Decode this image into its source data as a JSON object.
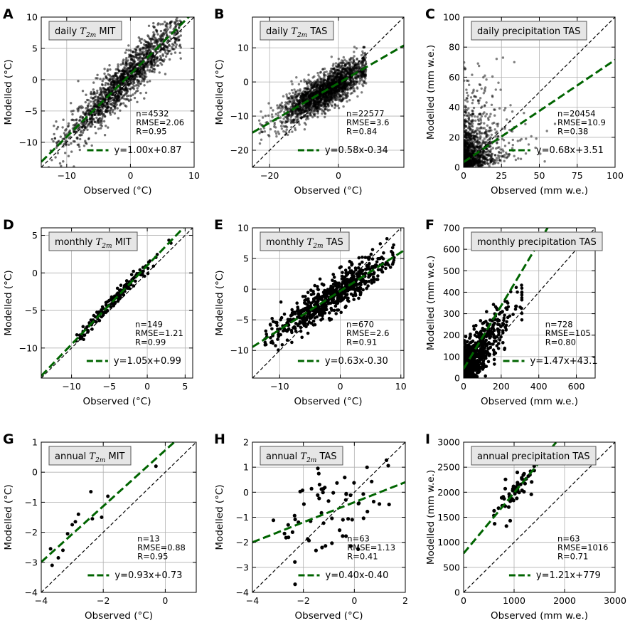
{
  "colors": {
    "fit": "#006400",
    "points": "#000000",
    "identity": "#000000",
    "grid": "#b0b0b0",
    "title_box": "#e6e6e6"
  },
  "chart_data": [
    {
      "id": "A",
      "type": "scatter",
      "letter": "A",
      "title": {
        "prefix": "daily",
        "var": "T",
        "sub": "2m",
        "suffix": "MIT"
      },
      "xlabel": "Observed (°C)",
      "ylabel": "Modelled (°C)",
      "xlim": [
        -14,
        10
      ],
      "ylim": [
        -14,
        10
      ],
      "xticks": [
        -10,
        0,
        10
      ],
      "yticks": [
        -10,
        -5,
        0,
        5,
        10
      ],
      "stats": {
        "n": "n=4532",
        "rmse": "RMSE=2.06",
        "r": "R=0.95"
      },
      "fit_label": "y=1.00x+0.87",
      "fit": {
        "slope": 1.0,
        "intercept": 0.87
      },
      "cloud": {
        "count": 1600,
        "xmin": -13,
        "xmax": 8,
        "center": -1,
        "spread": 4.5,
        "noise": 1.9,
        "opacity": 0.55,
        "r": 1.7,
        "seed": 11
      }
    },
    {
      "id": "B",
      "type": "scatter",
      "letter": "B",
      "title": {
        "prefix": "daily",
        "var": "T",
        "sub": "2m",
        "suffix": "TAS"
      },
      "xlabel": "Observed (°C)",
      "ylabel": "Modelled (°C)",
      "xlim": [
        -25,
        19
      ],
      "ylim": [
        -25,
        19
      ],
      "xticks": [
        -20,
        0
      ],
      "yticks": [
        -20,
        -10,
        0,
        10
      ],
      "stats": {
        "n": "n=22577",
        "rmse": "RMSE=3.6",
        "r": "R=0.84"
      },
      "fit_label": "y=0.58x-0.34",
      "fit": {
        "slope": 0.58,
        "intercept": -0.34
      },
      "cloud": {
        "count": 2200,
        "xmin": -23,
        "xmax": 8,
        "center": -4,
        "spread": 6.5,
        "noise": 2.6,
        "opacity": 0.5,
        "r": 1.7,
        "seed": 23
      }
    },
    {
      "id": "C",
      "type": "scatter",
      "letter": "C",
      "title": {
        "prefix": "daily precipitation TAS",
        "var": "",
        "sub": "",
        "suffix": ""
      },
      "xlabel": "Observed (mm w.e.)",
      "ylabel": "Modelled (mm w.e.)",
      "xlim": [
        0,
        100
      ],
      "ylim": [
        0,
        100
      ],
      "xticks": [
        0,
        25,
        50,
        75,
        100
      ],
      "yticks": [
        0,
        20,
        40,
        60,
        80,
        100
      ],
      "stats": {
        "n": "n=20454",
        "rmse": "RMSE=10.9",
        "r": "R=0.38"
      },
      "fit_label": "y=0.68x+3.51",
      "fit": {
        "slope": 0.68,
        "intercept": 3.51
      },
      "cloud": {
        "count": 1100,
        "xmin": 0,
        "xmax": 95,
        "mode": "precip",
        "scale": 9,
        "yscale": 14,
        "opacity": 0.5,
        "r": 1.7,
        "seed": 37
      }
    },
    {
      "id": "D",
      "type": "scatter",
      "letter": "D",
      "title": {
        "prefix": "monthly",
        "var": "T",
        "sub": "2m",
        "suffix": "MIT"
      },
      "xlabel": "Observed (°C)",
      "ylabel": "Modelled (°C)",
      "xlim": [
        -14,
        6
      ],
      "ylim": [
        -14,
        6
      ],
      "xticks": [
        -10,
        -5,
        0,
        5
      ],
      "yticks": [
        -10,
        -5,
        0,
        5
      ],
      "stats": {
        "n": "n=149",
        "rmse": "RMSE=1.21",
        "r": "R=0.99"
      },
      "fit_label": "y=1.05x+0.99",
      "fit": {
        "slope": 1.05,
        "intercept": 0.99
      },
      "cloud": {
        "count": 149,
        "xmin": -9.5,
        "xmax": 4,
        "center": -4,
        "spread": 3.2,
        "noise": 0.45,
        "opacity": 1,
        "r": 2.3,
        "seed": 41
      }
    },
    {
      "id": "E",
      "type": "scatter",
      "letter": "E",
      "title": {
        "prefix": "monthly",
        "var": "T",
        "sub": "2m",
        "suffix": "TAS"
      },
      "xlabel": "Observed (°C)",
      "ylabel": "Modelled (°C)",
      "xlim": [
        -14.5,
        10.5
      ],
      "ylim": [
        -14.5,
        10
      ],
      "xticks": [
        -10,
        0,
        10
      ],
      "yticks": [
        -10,
        -5,
        0,
        5,
        10
      ],
      "stats": {
        "n": "n=670",
        "rmse": "RMSE=2.6",
        "r": "R=0.91"
      },
      "fit_label": "y=0.63x-0.30",
      "fit": {
        "slope": 0.63,
        "intercept": -0.3
      },
      "cloud": {
        "count": 670,
        "xmin": -12.5,
        "xmax": 9,
        "center": -1.5,
        "spread": 5,
        "noise": 1.4,
        "opacity": 1,
        "r": 2.3,
        "seed": 53
      }
    },
    {
      "id": "F",
      "type": "scatter",
      "letter": "F",
      "title": {
        "prefix": "monthly precipitation TAS",
        "var": "",
        "sub": "",
        "suffix": ""
      },
      "xlabel": "Observed (mm w.e.)",
      "ylabel": "Modelled (mm w.e.)",
      "xlim": [
        0,
        700
      ],
      "ylim": [
        0,
        700
      ],
      "xticks": [
        0,
        200,
        400,
        600
      ],
      "yticks": [
        0,
        100,
        200,
        300,
        400,
        500,
        600,
        700
      ],
      "stats": {
        "n": "n=728",
        "rmse": "RMSE=105",
        "r": "R=0.80"
      },
      "fit_label": "y=1.47x+43.1",
      "fit": {
        "slope": 1.47,
        "intercept": 43.1
      },
      "cloud": {
        "count": 728,
        "xmin": 0,
        "xmax": 310,
        "mode": "precip",
        "scale": 70,
        "yscale": 0,
        "noise": 55,
        "opacity": 1,
        "r": 2.3,
        "seed": 67
      }
    },
    {
      "id": "G",
      "type": "scatter",
      "letter": "G",
      "title": {
        "prefix": "annual",
        "var": "T",
        "sub": "2m",
        "suffix": "MIT"
      },
      "xlabel": "Observed (°C)",
      "ylabel": "Modelled (°C)",
      "xlim": [
        -4,
        1
      ],
      "ylim": [
        -4,
        1
      ],
      "xticks": [
        -4,
        -2,
        0
      ],
      "yticks": [
        -4,
        -3,
        -2,
        -1,
        0,
        1
      ],
      "stats": {
        "n": "n=13",
        "rmse": "RMSE=0.88",
        "r": "R=0.95"
      },
      "fit_label": "y=0.93x+0.73",
      "fit": {
        "slope": 0.93,
        "intercept": 0.73
      },
      "points": [
        [
          -3.7,
          -2.55
        ],
        [
          -3.65,
          -3.1
        ],
        [
          -3.45,
          -2.85
        ],
        [
          -3.3,
          -2.6
        ],
        [
          -3.15,
          -2.05
        ],
        [
          -3.0,
          -1.75
        ],
        [
          -2.9,
          -1.65
        ],
        [
          -2.8,
          -1.4
        ],
        [
          -2.4,
          -0.65
        ],
        [
          -2.35,
          -1.55
        ],
        [
          -2.05,
          -1.5
        ],
        [
          -1.85,
          -0.8
        ],
        [
          -0.3,
          0.2
        ]
      ]
    },
    {
      "id": "H",
      "type": "scatter",
      "letter": "H",
      "title": {
        "prefix": "annual",
        "var": "T",
        "sub": "2m",
        "suffix": "TAS"
      },
      "xlabel": "Observed (°C)",
      "ylabel": "Modelled (°C)",
      "xlim": [
        -4,
        2
      ],
      "ylim": [
        -4,
        2
      ],
      "xticks": [
        -4,
        -2,
        0,
        2
      ],
      "yticks": [
        -4,
        -3,
        -2,
        -1,
        0,
        1,
        2
      ],
      "stats": {
        "n": "n=63",
        "rmse": "RMSE=1.13",
        "r": "R=0.41"
      },
      "fit_label": "y=0.40x-0.40",
      "fit": {
        "slope": 0.4,
        "intercept": -0.4
      },
      "cloud": {
        "count": 63,
        "xmin": -3.2,
        "xmax": 1.8,
        "center": -1,
        "spread": 1.1,
        "noise": 0.95,
        "opacity": 1,
        "r": 2.6,
        "seed": 79
      }
    },
    {
      "id": "I",
      "type": "scatter",
      "letter": "I",
      "title": {
        "prefix": "annual precipitation TAS",
        "var": "",
        "sub": "",
        "suffix": ""
      },
      "xlabel": "Observed (mm w.e.)",
      "ylabel": "Modelled (mm w.e.)",
      "xlim": [
        0,
        3000
      ],
      "ylim": [
        0,
        3000
      ],
      "xticks": [
        0,
        1000,
        2000,
        3000
      ],
      "yticks": [
        0,
        500,
        1000,
        1500,
        2000,
        2500,
        3000
      ],
      "stats": {
        "n": "n=63",
        "rmse": "RMSE=1016",
        "r": "R=0.71"
      },
      "fit_label": "y=1.21x+779",
      "fit": {
        "slope": 1.21,
        "intercept": 779
      },
      "cloud": {
        "count": 63,
        "xmin": 600,
        "xmax": 1400,
        "center": 1000,
        "spread": 220,
        "noise": 230,
        "opacity": 1,
        "r": 2.6,
        "seed": 97
      }
    }
  ]
}
